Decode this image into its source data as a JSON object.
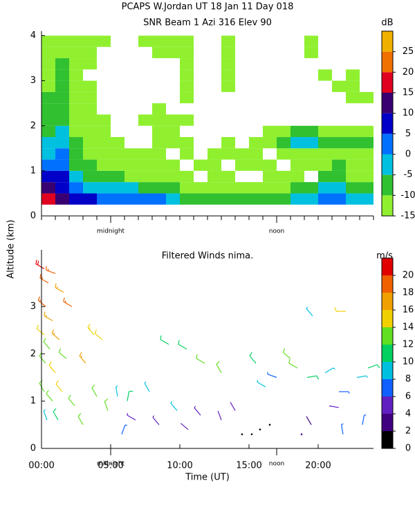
{
  "chart_data": [
    {
      "type": "heatmap",
      "title": "PCAPS W.Jordan UT  18 Jan 11 Day 018",
      "subtitle": "SNR Beam 1 Azi 316 Elev 90",
      "y_label": "Altitude (km)",
      "xlim": [
        0,
        24
      ],
      "xticks": [
        0,
        1,
        2,
        3,
        4,
        5,
        6,
        7,
        8,
        9,
        10,
        11,
        12,
        13,
        14,
        15,
        16,
        17,
        18,
        19,
        20,
        21,
        22,
        23,
        24
      ],
      "ylim": [
        0,
        4.1
      ],
      "yticks": [
        0,
        1,
        2,
        3,
        4
      ],
      "annotations": [
        {
          "text": "midnight",
          "x": 5
        },
        {
          "text": "noon",
          "x": 17
        }
      ],
      "x": [
        0,
        1,
        2,
        3,
        4,
        5,
        6,
        7,
        8,
        9,
        10,
        11,
        12,
        13,
        14,
        15,
        16,
        17,
        18,
        19,
        20,
        21,
        22,
        23,
        24
      ],
      "y": [
        0.25,
        0.5,
        0.75,
        1.0,
        1.25,
        1.5,
        1.75,
        2.0,
        2.25,
        2.5,
        2.75,
        3.0,
        3.25,
        3.5,
        3.75,
        4.0
      ],
      "z": [
        [
          17,
          12,
          7,
          7,
          2,
          2,
          2,
          2,
          2,
          -2,
          -7,
          -7,
          -7,
          -7,
          -7,
          -7,
          -7,
          -7,
          -2,
          -2,
          2,
          2,
          -2,
          -2
        ],
        [
          12,
          7,
          2,
          -2,
          -2,
          -2,
          -2,
          -7,
          -7,
          -7,
          -12,
          -12,
          -12,
          -12,
          -12,
          -12,
          -12,
          -12,
          -7,
          -7,
          -2,
          -2,
          -7,
          -7
        ],
        [
          7,
          7,
          -2,
          -7,
          -7,
          -7,
          -12,
          -12,
          -12,
          -12,
          -12,
          null,
          -12,
          -12,
          null,
          null,
          -12,
          -12,
          -12,
          null,
          -7,
          -7,
          -12,
          -12
        ],
        [
          2,
          2,
          -7,
          -7,
          -12,
          -12,
          -12,
          -12,
          -12,
          -12,
          null,
          -12,
          -12,
          null,
          -12,
          -12,
          -12,
          null,
          -12,
          -12,
          -12,
          -7,
          -12,
          -12
        ],
        [
          -2,
          2,
          -7,
          -12,
          -12,
          -12,
          -12,
          -12,
          -12,
          null,
          -12,
          null,
          -12,
          -12,
          -12,
          -12,
          null,
          -12,
          -12,
          -12,
          -12,
          -12,
          -12,
          -12
        ],
        [
          -2,
          -2,
          -7,
          -12,
          -12,
          -12,
          null,
          null,
          -12,
          -12,
          -12,
          null,
          null,
          -12,
          null,
          -12,
          -12,
          -7,
          -2,
          -2,
          -7,
          -7,
          -7,
          -7
        ],
        [
          -7,
          -2,
          -12,
          -12,
          -12,
          null,
          null,
          null,
          -12,
          -12,
          null,
          null,
          null,
          null,
          null,
          null,
          -12,
          -12,
          -7,
          -7,
          -12,
          -12,
          -12,
          -12
        ],
        [
          -7,
          -7,
          -12,
          -12,
          -12,
          null,
          null,
          -12,
          -12,
          -12,
          -12,
          null,
          null,
          null,
          null,
          null,
          null,
          null,
          null,
          null,
          null,
          null,
          null,
          null
        ],
        [
          -7,
          -7,
          -12,
          -12,
          null,
          null,
          null,
          null,
          -12,
          null,
          null,
          null,
          null,
          null,
          null,
          null,
          null,
          null,
          null,
          null,
          null,
          null,
          null,
          null
        ],
        [
          -7,
          -7,
          -12,
          -12,
          null,
          null,
          null,
          null,
          null,
          null,
          -12,
          null,
          null,
          null,
          null,
          null,
          null,
          null,
          null,
          null,
          null,
          null,
          -12,
          -12
        ],
        [
          -12,
          -7,
          -12,
          -12,
          null,
          null,
          null,
          null,
          null,
          null,
          -12,
          null,
          null,
          -12,
          null,
          null,
          null,
          null,
          null,
          null,
          null,
          -12,
          -12,
          null
        ],
        [
          -12,
          -7,
          -12,
          null,
          null,
          null,
          null,
          null,
          null,
          null,
          -12,
          null,
          null,
          -12,
          null,
          null,
          null,
          null,
          null,
          null,
          -12,
          null,
          -12,
          null
        ],
        [
          -12,
          -7,
          -12,
          -12,
          null,
          null,
          null,
          null,
          null,
          null,
          -12,
          null,
          null,
          -12,
          null,
          null,
          null,
          null,
          null,
          null,
          null,
          null,
          null,
          null
        ],
        [
          -12,
          -12,
          -12,
          -12,
          null,
          null,
          null,
          null,
          -12,
          -12,
          -12,
          null,
          null,
          -12,
          null,
          null,
          null,
          null,
          null,
          -12,
          null,
          null,
          null,
          null
        ],
        [
          -12,
          -12,
          -12,
          -12,
          -12,
          null,
          null,
          -12,
          -12,
          -12,
          -12,
          null,
          null,
          -12,
          null,
          null,
          null,
          null,
          null,
          -12,
          null,
          null,
          null,
          null
        ]
      ],
      "colorbar": {
        "label": "dB",
        "lim": [
          -15,
          30
        ],
        "ticks": [
          -15,
          -10,
          -5,
          0,
          5,
          10,
          15,
          20,
          25
        ],
        "colors": [
          "#90f030",
          "#30c030",
          "#00c0e0",
          "#0070ff",
          "#0000c8",
          "#380070",
          "#e00020",
          "#f07000",
          "#f0b000"
        ]
      }
    },
    {
      "type": "barbs",
      "title": "Filtered Winds nima.",
      "x_label": "Time (UT)",
      "xlim": [
        0,
        24
      ],
      "xticks": [
        {
          "value": 0,
          "label": "00:00"
        },
        {
          "value": 5,
          "label": "05:00"
        },
        {
          "value": 10,
          "label": "10:00"
        },
        {
          "value": 15,
          "label": "15:00"
        },
        {
          "value": 20,
          "label": "20:00"
        }
      ],
      "ylim": [
        0,
        4.2
      ],
      "yticks": [
        0,
        1,
        2,
        3
      ],
      "annotations": [
        {
          "text": "midnight",
          "x": 5
        },
        {
          "text": "noon",
          "x": 17
        }
      ],
      "x": [
        0.2,
        0.5,
        1.0,
        1.6,
        0.3,
        0.8,
        2.2,
        0.2,
        0.6,
        1.3,
        0.3,
        1.0,
        1.8,
        0.2,
        0.8,
        1.5,
        0.4,
        1.2,
        2.4,
        3.2,
        3.8,
        4.4,
        3.0,
        4.0,
        4.8,
        5.5,
        6.2,
        5.8,
        6.8,
        7.8,
        8.5,
        9.2,
        9.8,
        10.5,
        10.6,
        11.5,
        11.8,
        13.0,
        13.0,
        14.0,
        14.5,
        15.2,
        15.8,
        16.5,
        15.5,
        16.2,
        17.0,
        18.0,
        18.5,
        19.2,
        18.8,
        19.5,
        19.6,
        20.5,
        20.8,
        21.5,
        22.0,
        21.8,
        22.8,
        23.2,
        23.6
      ],
      "altitude": [
        3.8,
        3.5,
        3.7,
        3.3,
        3.0,
        2.7,
        3.0,
        2.4,
        2.1,
        2.3,
        1.8,
        1.6,
        1.9,
        1.2,
        1.0,
        1.2,
        0.6,
        0.6,
        0.9,
        1.8,
        2.4,
        2.3,
        0.5,
        1.1,
        0.8,
        1.1,
        1.0,
        0.3,
        0.6,
        1.2,
        0.5,
        2.2,
        0.8,
        2.1,
        0.4,
        0.7,
        1.8,
        1.6,
        0.6,
        0.8,
        0.3,
        0.3,
        0.4,
        0.5,
        1.8,
        1.3,
        1.5,
        1.9,
        1.7,
        1.5,
        0.3,
        0.5,
        2.8,
        1.6,
        0.9,
        1.2,
        2.9,
        0.3,
        1.5,
        0.5,
        1.7
      ],
      "speed": [
        20,
        19,
        18,
        17,
        18,
        17,
        18,
        14,
        13,
        16,
        12,
        14,
        13,
        12,
        13,
        14,
        8,
        11,
        13,
        16,
        15,
        14,
        13,
        12,
        12,
        9,
        10,
        6,
        5,
        8,
        5,
        10,
        8,
        11,
        4,
        5,
        13,
        12,
        4,
        4,
        1,
        1,
        1,
        1,
        10,
        8,
        6,
        13,
        12,
        10,
        2,
        3,
        8,
        9,
        4,
        7,
        14,
        7,
        9,
        6,
        10
      ],
      "direction": [
        300,
        300,
        290,
        300,
        310,
        300,
        300,
        310,
        320,
        310,
        320,
        320,
        310,
        330,
        320,
        320,
        340,
        330,
        320,
        320,
        320,
        310,
        330,
        330,
        340,
        350,
        10,
        20,
        300,
        330,
        320,
        300,
        320,
        300,
        310,
        320,
        300,
        330,
        340,
        330,
        0,
        0,
        0,
        0,
        320,
        300,
        290,
        310,
        300,
        80,
        340,
        330,
        320,
        60,
        100,
        90,
        270,
        350,
        80,
        10,
        70
      ],
      "colorbar": {
        "label": "m/s",
        "lim": [
          0,
          22
        ],
        "ticks": [
          0,
          2,
          4,
          6,
          8,
          10,
          12,
          14,
          16,
          18,
          20
        ],
        "colors": [
          "#000000",
          "#400080",
          "#6020c0",
          "#1060ff",
          "#00c0e0",
          "#00d060",
          "#60e020",
          "#f0d000",
          "#f0a000",
          "#f06000",
          "#e00000"
        ]
      }
    }
  ]
}
